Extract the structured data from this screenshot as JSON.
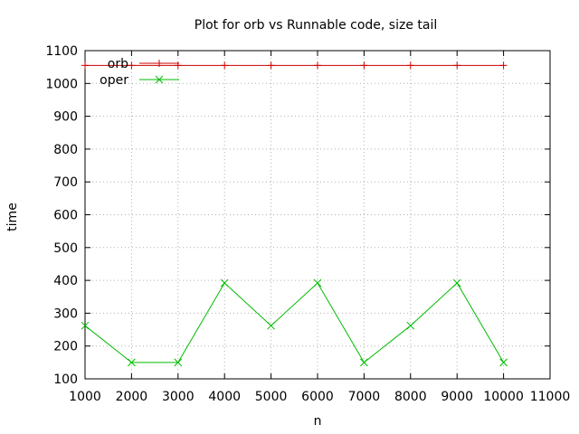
{
  "chart_data": {
    "type": "line",
    "title": "Plot for orb vs Runnable code, size tail",
    "xlabel": "n",
    "ylabel": "time",
    "xlim": [
      1000,
      11000
    ],
    "ylim": [
      100,
      1100
    ],
    "xticks": [
      1000,
      2000,
      3000,
      4000,
      5000,
      6000,
      7000,
      8000,
      9000,
      10000,
      11000
    ],
    "yticks": [
      100,
      200,
      300,
      400,
      500,
      600,
      700,
      800,
      900,
      1000,
      1100
    ],
    "grid": true,
    "legend_position": "top-left",
    "x": [
      1000,
      2000,
      3000,
      4000,
      5000,
      6000,
      7000,
      8000,
      9000,
      10000
    ],
    "series": [
      {
        "name": "orb",
        "color": "#cc0000",
        "marker": "plus",
        "values": [
          1055,
          1055,
          1055,
          1055,
          1055,
          1055,
          1055,
          1055,
          1055,
          1055
        ]
      },
      {
        "name": "oper",
        "color": "#00bb00",
        "marker": "cross",
        "values": [
          262,
          150,
          150,
          392,
          262,
          392,
          150,
          262,
          392,
          150
        ]
      }
    ]
  }
}
